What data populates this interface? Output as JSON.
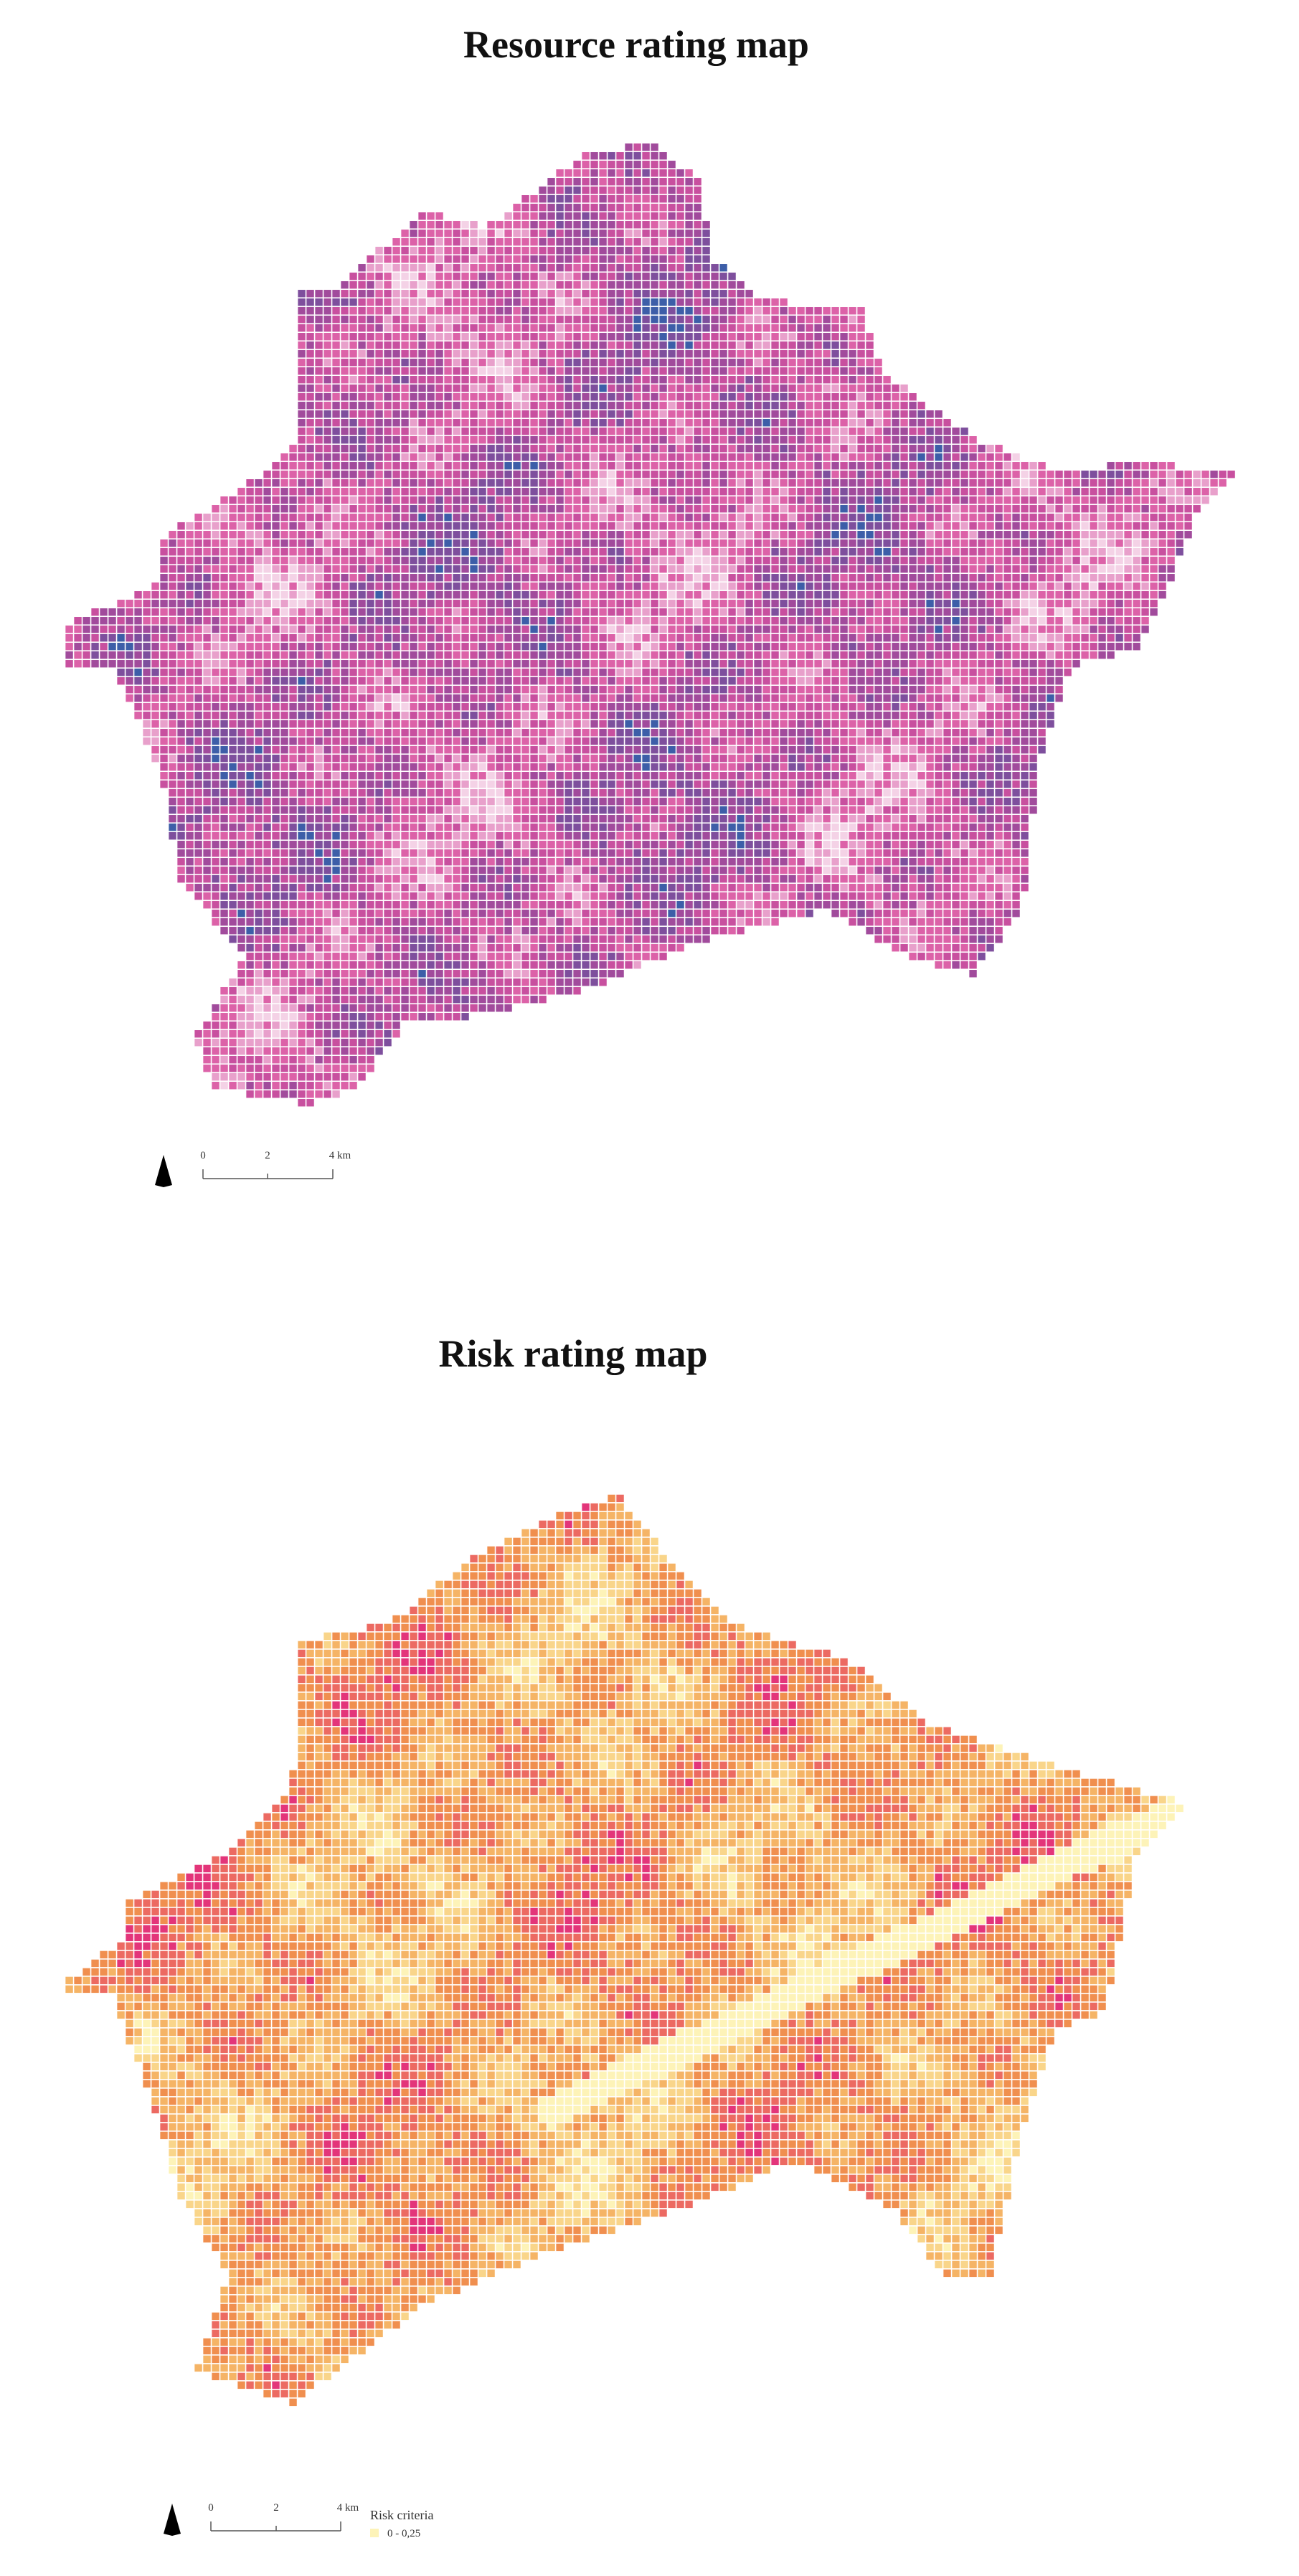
{
  "resource_map": {
    "title": "Resource rating map",
    "scale_bar": {
      "labels": [
        "0",
        "2",
        "4 km"
      ]
    }
  },
  "risk_map": {
    "title": "Risk rating map",
    "scale_bar": {
      "labels": [
        "0",
        "2",
        "4 km"
      ]
    },
    "legend": {
      "title": "Risk criteria",
      "items": [
        "0 - 0,25"
      ]
    }
  }
}
